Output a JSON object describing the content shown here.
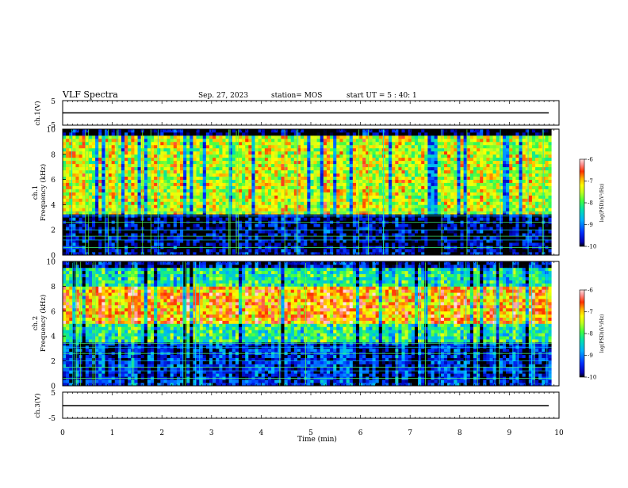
{
  "header": {
    "title": "VLF Spectra",
    "date": "Sep. 27, 2023",
    "station": "station= MOS",
    "start": "start  UT =   5 : 40: 1"
  },
  "colors": {
    "scale": [
      "#000000",
      "#0000b0",
      "#0030ff",
      "#00b0ff",
      "#00e0b0",
      "#40ff40",
      "#c0ff20",
      "#ffff00",
      "#ffb000",
      "#ff3000",
      "#ff9090",
      "#ffe0e0"
    ],
    "line": "#000000"
  },
  "chart_data": [
    {
      "type": "line",
      "panel": "ch1-waveform",
      "ylabel": "ch.1(V)",
      "ylim": [
        -5,
        5
      ],
      "yticks": [
        "5",
        "-5"
      ],
      "x": [
        0,
        9.85
      ],
      "values": [
        0,
        0
      ]
    },
    {
      "type": "heatmap",
      "panel": "ch1-spectrogram",
      "ylabel": "ch.1\nFrequency (kHz)",
      "ylim": [
        0,
        10
      ],
      "yticks": [
        "0",
        "2",
        "4",
        "6",
        "8",
        "10"
      ],
      "xlim": [
        0,
        9.85
      ],
      "colorbar": {
        "label": "log(PSD)(V²/Hz)",
        "range": [
          -10,
          -6
        ],
        "ticks": [
          "-6",
          "-7",
          "-8",
          "-9",
          "-10"
        ]
      },
      "bands": [
        {
          "f": [
            0,
            0.3
          ],
          "level": -9.6
        },
        {
          "f": [
            0.3,
            3.3
          ],
          "level": -9.8
        },
        {
          "f": [
            3.3,
            9.4
          ],
          "level": -7.4
        },
        {
          "f": [
            9.4,
            10
          ],
          "level": -10
        }
      ]
    },
    {
      "type": "heatmap",
      "panel": "ch2-spectrogram",
      "ylabel": "ch.2\nFrequency (kHz)",
      "ylim": [
        0,
        10
      ],
      "yticks": [
        "0",
        "2",
        "4",
        "6",
        "8",
        "10"
      ],
      "xlim": [
        0,
        9.85
      ],
      "colorbar": {
        "label": "log(PSD)(V²/Hz)",
        "range": [
          -10,
          -6
        ],
        "ticks": [
          "-6",
          "-7",
          "-8",
          "-9",
          "-10"
        ]
      },
      "bands": [
        {
          "f": [
            0,
            0.5
          ],
          "level": -9.4
        },
        {
          "f": [
            0.5,
            3.5
          ],
          "level": -9.5
        },
        {
          "f": [
            3.5,
            5
          ],
          "level": -8.2
        },
        {
          "f": [
            5,
            8
          ],
          "level": -6.9
        },
        {
          "f": [
            8,
            9.6
          ],
          "level": -8.3
        },
        {
          "f": [
            9.6,
            10
          ],
          "level": -9.8
        }
      ]
    },
    {
      "type": "line",
      "panel": "ch3-waveform",
      "ylabel": "ch.3(V)",
      "ylim": [
        -5,
        5
      ],
      "yticks": [
        "5",
        "-5"
      ],
      "x": [
        0,
        9.85
      ],
      "values": [
        0,
        0
      ]
    }
  ],
  "xaxis": {
    "label": "Time (min)",
    "xlim": [
      0,
      10
    ],
    "ticks": [
      "0",
      "1",
      "2",
      "3",
      "4",
      "5",
      "6",
      "7",
      "8",
      "9",
      "10"
    ]
  }
}
